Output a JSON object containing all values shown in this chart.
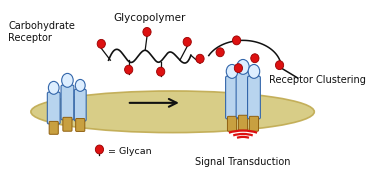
{
  "bg_color": "#ffffff",
  "membrane_color": "#d4c87a",
  "membrane_edge": "#c0aa50",
  "receptor_body_color": "#b8d4ee",
  "receptor_body_edge": "#3366aa",
  "receptor_head_color": "#ddeeff",
  "glycan_color": "#dd1111",
  "glycan_edge": "#990000",
  "signal_color": "#dd1111",
  "tail_color": "#c8a040",
  "tail_edge": "#906010",
  "chain_color": "#111111",
  "arrow_color": "#111111",
  "text_color": "#111111",
  "label_carbohydrate": "Carbohydrate\nReceptor",
  "label_glycopolymer": "Glycopolymer",
  "label_receptor_clustering": "Receptor Clustering",
  "label_glycan_legend": "= Glycan",
  "label_signal": "Signal Transduction",
  "figsize": [
    3.78,
    1.71
  ],
  "dpi": 100
}
